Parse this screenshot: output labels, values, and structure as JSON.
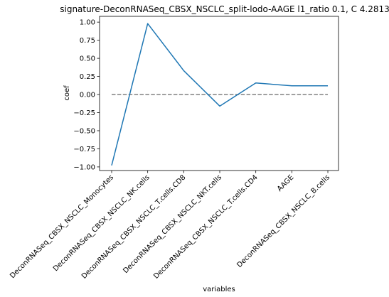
{
  "chart_data": {
    "type": "line",
    "title": "signature-DeconRNASeq_CBSX_NSCLC_split-lodo-AAGE l1_ratio 0.1, C 4.2813",
    "xlabel": "variables",
    "ylabel": "coef",
    "categories": [
      "DeconRNASeq_CBSX_NSCLC_Monocytes",
      "DeconRNASeq_CBSX_NSCLC_NK.cells",
      "DeconRNASeq_CBSX_NSCLC_T.cells.CD8",
      "DeconRNASeq_CBSX_NSCLC_NKT.cells",
      "DeconRNASeq_CBSX_NSCLC_T.cells.CD4",
      "AAGE",
      "DeconRNASeq_CBSX_NSCLC_B.cells"
    ],
    "series": [
      {
        "values": [
          -0.98,
          0.98,
          0.33,
          -0.16,
          0.16,
          0.12,
          0.12
        ],
        "color": "#1f77b4"
      }
    ],
    "reference_line": {
      "y": 0.0,
      "style": "dashed",
      "color": "#808080"
    },
    "ylim": [
      -1.05,
      1.08
    ],
    "yticks": [
      -1.0,
      -0.75,
      -0.5,
      -0.25,
      0.0,
      0.25,
      0.5,
      0.75,
      1.0
    ],
    "ytick_labels": [
      "−1.00",
      "−0.75",
      "−0.50",
      "−0.25",
      "0.00",
      "0.25",
      "0.50",
      "0.75",
      "1.00"
    ],
    "grid": false
  }
}
